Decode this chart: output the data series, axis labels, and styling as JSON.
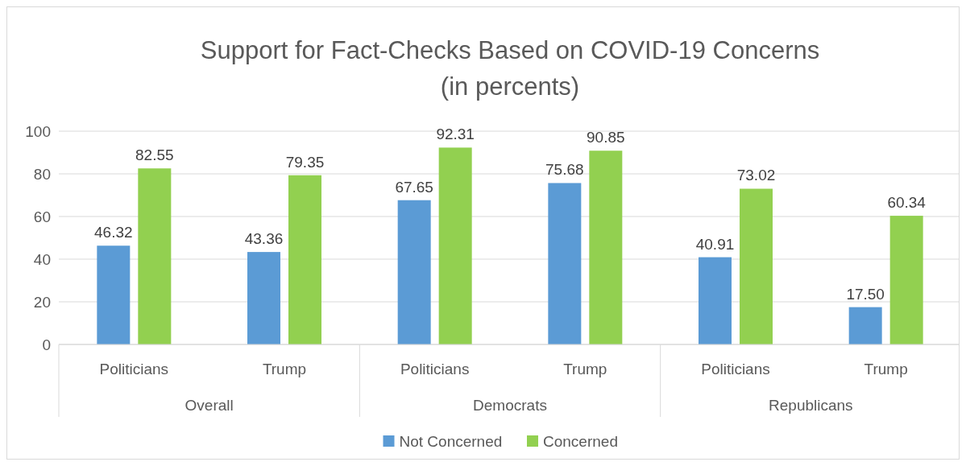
{
  "chart_data": {
    "type": "bar",
    "title": "Support for Fact-Checks Based on COVID-19 Concerns",
    "subtitle": "(in percents)",
    "categories": [
      "Politicians",
      "Trump",
      "Politicians",
      "Trump",
      "Politicians",
      "Trump"
    ],
    "annotations": [
      "Overall",
      "Democrats",
      "Republicans"
    ],
    "series": [
      {
        "name": "Not Concerned",
        "color": "#5b9bd5",
        "values": [
          46.32,
          43.36,
          67.65,
          75.68,
          40.91,
          17.5
        ],
        "value_labels": [
          "46.32",
          "43.36",
          "67.65",
          "75.68",
          "40.91",
          "17.50"
        ]
      },
      {
        "name": "Concerned",
        "color": "#92d050",
        "values": [
          82.55,
          79.35,
          92.31,
          90.85,
          73.02,
          60.34
        ],
        "value_labels": [
          "82.55",
          "79.35",
          "92.31",
          "90.85",
          "73.02",
          "60.34"
        ]
      }
    ],
    "ylim": [
      0,
      100
    ],
    "yticks": [
      0,
      20,
      40,
      60,
      80,
      100
    ],
    "grid": "y",
    "legend": "bottom"
  }
}
